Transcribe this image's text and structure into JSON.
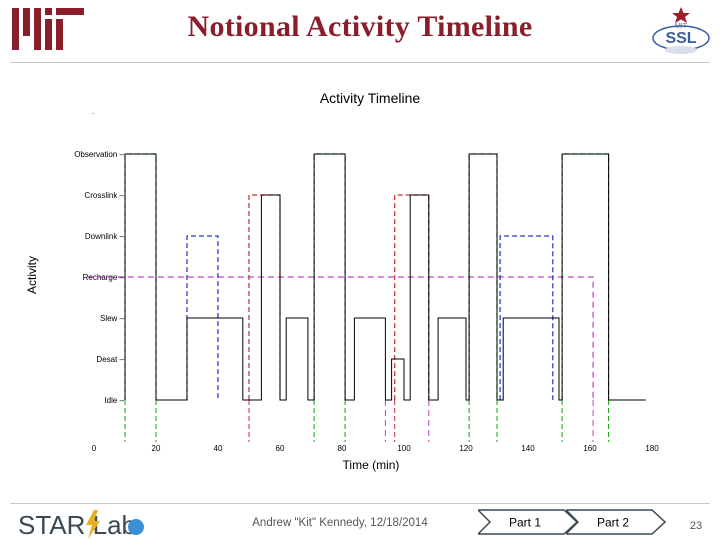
{
  "slide": {
    "title": "Notional Activity Timeline",
    "mit_logo_text": "MIT",
    "ssl_logo_text": "SSL",
    "ssl_logo_top_text": "MIT"
  },
  "footer": {
    "logo_text": "STAR Lab",
    "author": "Andrew \"Kit\" Kennedy, 12/18/2014",
    "nav": [
      {
        "label": "Part 1",
        "active": false
      },
      {
        "label": "Part 2",
        "active": true
      }
    ],
    "page_number": "23"
  },
  "colors": {
    "title": "#8a1f2b",
    "observation": "#10a010",
    "crosslink": "#c03030",
    "downlink": "#2030c0",
    "recharge": "#c040c0",
    "baseline": "#000000"
  },
  "chart_data": {
    "type": "line",
    "title": "Activity Timeline",
    "xlabel": "Time (min)",
    "ylabel": "Activity",
    "xlim": [
      0,
      180
    ],
    "x_ticks": [
      "0",
      "20",
      "40",
      "60",
      "80",
      "100",
      "120",
      "140",
      "160",
      "180"
    ],
    "y_categories": [
      "Observation",
      "Crosslink",
      "Downlink",
      "Recharge",
      "Slew",
      "Desat",
      "Idle"
    ],
    "x_top_edge_label": ".",
    "series": [
      {
        "key": "baseline",
        "color_key": "baseline",
        "dash": "",
        "points": [
          [
            10,
            "Idle"
          ],
          [
            10,
            "Observation"
          ],
          [
            20,
            "Observation"
          ],
          [
            20,
            "Idle"
          ],
          [
            30,
            "Idle"
          ],
          [
            30,
            "Slew"
          ],
          [
            48,
            "Slew"
          ],
          [
            48,
            "Idle"
          ],
          [
            54,
            "Idle"
          ],
          [
            54,
            "Crosslink"
          ],
          [
            60,
            "Crosslink"
          ],
          [
            60,
            "Idle"
          ],
          [
            62,
            "Idle"
          ],
          [
            62,
            "Slew"
          ],
          [
            69,
            "Slew"
          ],
          [
            69,
            "Idle"
          ],
          [
            71,
            "Idle"
          ],
          [
            71,
            "Observation"
          ],
          [
            81,
            "Observation"
          ],
          [
            81,
            "Idle"
          ],
          [
            84,
            "Idle"
          ],
          [
            84,
            "Slew"
          ],
          [
            94,
            "Slew"
          ],
          [
            94,
            "Idle"
          ],
          [
            96,
            "Idle"
          ],
          [
            96,
            "Desat"
          ],
          [
            100,
            "Desat"
          ],
          [
            100,
            "Idle"
          ],
          [
            102,
            "Idle"
          ],
          [
            102,
            "Crosslink"
          ],
          [
            108,
            "Crosslink"
          ],
          [
            108,
            "Idle"
          ],
          [
            111,
            "Idle"
          ],
          [
            111,
            "Slew"
          ],
          [
            120,
            "Slew"
          ],
          [
            120,
            "Idle"
          ],
          [
            121,
            "Idle"
          ],
          [
            121,
            "Observation"
          ],
          [
            130,
            "Observation"
          ],
          [
            130,
            "Idle"
          ],
          [
            132,
            "Idle"
          ],
          [
            132,
            "Slew"
          ],
          [
            150,
            "Slew"
          ],
          [
            150,
            "Idle"
          ],
          [
            151,
            "Idle"
          ],
          [
            151,
            "Observation"
          ],
          [
            166,
            "Observation"
          ],
          [
            166,
            "Idle"
          ],
          [
            178,
            "Idle"
          ]
        ]
      },
      {
        "key": "observation",
        "color_key": "observation",
        "dash": "5,3",
        "segments": [
          [
            [
              10,
              "Idle"
            ],
            [
              10,
              "Observation"
            ],
            [
              20,
              "Observation"
            ],
            [
              20,
              "Idle"
            ]
          ],
          [
            [
              71,
              "Idle"
            ],
            [
              71,
              "Observation"
            ],
            [
              81,
              "Observation"
            ],
            [
              81,
              "Idle"
            ]
          ],
          [
            [
              121,
              "Idle"
            ],
            [
              121,
              "Observation"
            ],
            [
              130,
              "Observation"
            ],
            [
              130,
              "Idle"
            ]
          ],
          [
            [
              151,
              "Idle"
            ],
            [
              151,
              "Observation"
            ],
            [
              166,
              "Observation"
            ],
            [
              166,
              "Idle"
            ]
          ]
        ]
      },
      {
        "key": "crosslink",
        "color_key": "crosslink",
        "dash": "5,3",
        "segments": [
          [
            [
              50,
              "Idle"
            ],
            [
              50,
              "Crosslink"
            ],
            [
              60,
              "Crosslink"
            ],
            [
              60,
              "Idle"
            ]
          ],
          [
            [
              97,
              "Idle"
            ],
            [
              97,
              "Crosslink"
            ],
            [
              108,
              "Crosslink"
            ],
            [
              108,
              "Idle"
            ]
          ]
        ]
      },
      {
        "key": "downlink",
        "color_key": "downlink",
        "dash": "5,3",
        "segments": [
          [
            [
              30,
              "Idle"
            ],
            [
              30,
              "Downlink"
            ],
            [
              40,
              "Downlink"
            ],
            [
              40,
              "Idle"
            ]
          ],
          [
            [
              131,
              "Idle"
            ],
            [
              131,
              "Downlink"
            ],
            [
              148,
              "Downlink"
            ],
            [
              148,
              "Idle"
            ]
          ]
        ]
      },
      {
        "key": "recharge",
        "color_key": "recharge",
        "dash": "6,4",
        "segments": [
          [
            [
              -2,
              "Recharge"
            ],
            [
              161,
              "Recharge"
            ],
            [
              161,
              "Idle"
            ]
          ]
        ]
      },
      {
        "key": "green-vertical-lines",
        "color_key": "observation",
        "dash": "5,3",
        "vlines": [
          10,
          20,
          71,
          81,
          121,
          130,
          151,
          166
        ]
      },
      {
        "key": "crosslink-vertical-lines",
        "color_key": "crosslink",
        "dash": "5,3",
        "vlines": [
          50,
          97
        ]
      },
      {
        "key": "recharge-vertical-lines",
        "color_key": "recharge",
        "dash": "6,4",
        "vlines": [
          94,
          108,
          161
        ]
      }
    ]
  }
}
